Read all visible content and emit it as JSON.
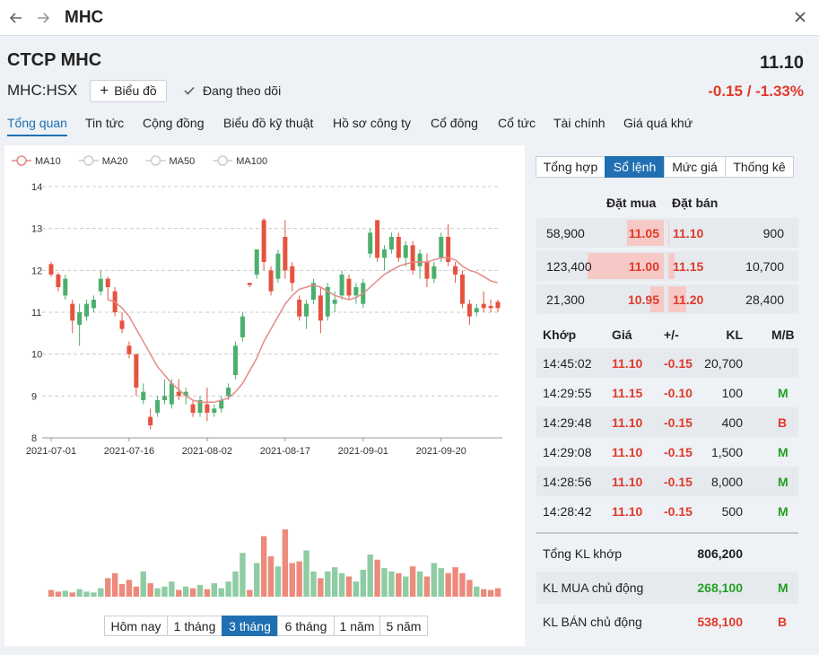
{
  "header": {
    "title": "MHC"
  },
  "company": {
    "name": "CTCP MHC",
    "ticker": "MHC:HSX",
    "chart_button": "Biểu đồ",
    "follow": "Đang theo dõi",
    "price": "11.10",
    "change": "-0.15 / -1.33%"
  },
  "tabs": [
    "Tổng quan",
    "Tin tức",
    "Cộng đồng",
    "Biểu đồ kỹ thuật",
    "Hồ sơ công ty",
    "Cổ đông",
    "Cổ tức",
    "Tài chính",
    "Giá quá khứ"
  ],
  "active_tab": 0,
  "chart_data": {
    "type": "candlestick",
    "categories": [
      "2021-07-01",
      null,
      null,
      null,
      null,
      null,
      null,
      null,
      null,
      null,
      null,
      "2021-07-16",
      null,
      null,
      null,
      null,
      null,
      null,
      null,
      null,
      null,
      null,
      "2021-08-02",
      null,
      null,
      null,
      null,
      null,
      null,
      null,
      null,
      null,
      null,
      "2021-08-17",
      null,
      null,
      null,
      null,
      null,
      null,
      null,
      null,
      null,
      null,
      "2021-09-01",
      null,
      null,
      null,
      null,
      null,
      null,
      null,
      null,
      null,
      null,
      "2021-09-20",
      null,
      null,
      null,
      null,
      null,
      null,
      null,
      null
    ],
    "open": [
      12.15,
      11.9,
      11.4,
      11.2,
      10.7,
      10.9,
      11.1,
      11.5,
      11.8,
      11.5,
      10.8,
      10.2,
      10.0,
      8.9,
      8.5,
      8.6,
      8.9,
      8.8,
      9.1,
      9.0,
      8.8,
      8.6,
      8.8,
      8.6,
      8.7,
      9.0,
      9.5,
      10.4,
      11.7,
      11.9,
      13.2,
      12.0,
      11.8,
      12.8,
      12.1,
      11.3,
      10.9,
      11.3,
      11.4,
      10.9,
      11.2,
      11.4,
      11.8,
      11.4,
      11.2,
      12.4,
      13.2,
      12.3,
      12.5,
      12.8,
      12.3,
      12.6,
      12.1,
      12.2,
      11.8,
      12.3,
      12.8,
      12.1,
      11.9,
      11.2,
      11.0,
      11.2,
      11.15,
      11.25
    ],
    "high": [
      12.2,
      11.95,
      11.9,
      11.3,
      11.2,
      11.3,
      11.4,
      12.0,
      11.85,
      11.6,
      11.0,
      10.3,
      10.0,
      9.3,
      8.7,
      9.0,
      9.4,
      9.4,
      9.4,
      9.2,
      8.9,
      9.0,
      9.2,
      8.8,
      9.0,
      9.3,
      10.3,
      11.0,
      11.7,
      12.5,
      13.25,
      12.1,
      12.5,
      13.2,
      12.2,
      11.4,
      11.3,
      11.8,
      11.6,
      11.7,
      11.5,
      12.0,
      11.9,
      11.7,
      11.8,
      13.0,
      13.2,
      12.6,
      12.9,
      12.9,
      12.7,
      12.7,
      12.5,
      12.4,
      12.2,
      12.9,
      13.1,
      12.2,
      12.0,
      11.3,
      11.2,
      11.5,
      11.3,
      11.3
    ],
    "low": [
      11.85,
      11.5,
      11.3,
      10.5,
      10.2,
      10.8,
      11.0,
      11.4,
      11.3,
      10.9,
      10.5,
      9.9,
      9.0,
      8.8,
      8.2,
      8.5,
      8.8,
      8.7,
      8.9,
      8.8,
      8.5,
      8.5,
      8.4,
      8.5,
      8.6,
      8.9,
      9.4,
      10.3,
      11.6,
      11.8,
      12.0,
      11.4,
      11.7,
      11.8,
      11.5,
      10.8,
      10.6,
      11.2,
      10.5,
      10.8,
      11.0,
      11.3,
      11.3,
      11.2,
      11.1,
      12.3,
      12.2,
      12.0,
      12.4,
      12.2,
      12.1,
      11.9,
      11.8,
      11.6,
      11.7,
      12.2,
      12.1,
      11.7,
      11.1,
      10.7,
      10.9,
      11.0,
      11.0,
      11.0
    ],
    "close": [
      11.9,
      11.6,
      11.8,
      10.8,
      11.0,
      11.2,
      11.3,
      11.8,
      11.6,
      11.0,
      10.6,
      10.0,
      9.2,
      9.1,
      8.3,
      8.9,
      9.0,
      9.3,
      9.0,
      9.1,
      8.6,
      8.9,
      8.6,
      8.7,
      8.9,
      9.2,
      10.2,
      10.9,
      11.65,
      12.5,
      12.2,
      11.5,
      12.4,
      12.0,
      11.7,
      10.9,
      11.2,
      11.7,
      10.8,
      11.6,
      11.3,
      11.9,
      11.4,
      11.6,
      11.7,
      12.9,
      12.3,
      12.5,
      12.8,
      12.3,
      12.6,
      12.0,
      12.4,
      11.8,
      12.1,
      12.8,
      12.2,
      11.9,
      11.2,
      10.9,
      11.1,
      11.1,
      11.1,
      11.1
    ],
    "volume": [
      8,
      6,
      7,
      5,
      9,
      6,
      5,
      10,
      22,
      28,
      15,
      20,
      12,
      30,
      16,
      10,
      12,
      18,
      8,
      12,
      10,
      14,
      9,
      16,
      10,
      18,
      30,
      52,
      8,
      40,
      72,
      48,
      36,
      80,
      40,
      42,
      55,
      30,
      22,
      30,
      35,
      28,
      24,
      18,
      32,
      50,
      44,
      34,
      30,
      28,
      24,
      36,
      30,
      24,
      40,
      34,
      28,
      35,
      28,
      20,
      12,
      9,
      8,
      10
    ],
    "moving_averages": [
      {
        "name": "MA10",
        "color": "#e58a8a",
        "visible": true,
        "values": [
          null,
          null,
          null,
          null,
          null,
          null,
          null,
          null,
          11.3,
          11.25,
          11.1,
          10.9,
          10.6,
          10.3,
          10.0,
          9.7,
          9.5,
          9.3,
          9.15,
          9.0,
          8.9,
          8.85,
          8.85,
          8.85,
          8.9,
          8.95,
          9.1,
          9.3,
          9.6,
          9.9,
          10.3,
          10.6,
          10.9,
          11.2,
          11.4,
          11.55,
          11.6,
          11.65,
          11.6,
          11.5,
          11.4,
          11.35,
          11.3,
          11.35,
          11.45,
          11.6,
          11.75,
          11.9,
          12.0,
          12.1,
          12.15,
          12.2,
          12.2,
          12.2,
          12.25,
          12.3,
          12.3,
          12.25,
          12.1,
          12.0,
          11.95,
          11.85,
          11.75,
          11.7
        ]
      },
      {
        "name": "MA20",
        "color": "#cccccc",
        "visible": false
      },
      {
        "name": "MA50",
        "color": "#cccccc",
        "visible": false
      },
      {
        "name": "MA100",
        "color": "#cccccc",
        "visible": false
      }
    ],
    "ylim": [
      8,
      14
    ],
    "yticks": [
      8,
      9,
      10,
      11,
      12,
      13,
      14
    ],
    "grid": true,
    "up_color": "#4caf6e",
    "down_color": "#e5533f",
    "up_volume_color": "#8fcca3",
    "down_volume_color": "#ec8a7c"
  },
  "ranges": {
    "options": [
      "Hôm nay",
      "1 tháng",
      "3 tháng",
      "6 tháng",
      "1 năm",
      "5 năm"
    ],
    "active": 2
  },
  "panel": {
    "tabs": [
      "Tổng hợp",
      "Sổ lệnh",
      "Mức giá",
      "Thống kê"
    ],
    "active_tab": 1,
    "order_book": {
      "headers": [
        "Đặt mua",
        "Đặt bán"
      ],
      "rows": [
        {
          "bid_volume": 58900,
          "bid_volume_label": "58,900",
          "bid_price": "11.05",
          "ask_price": "11.10",
          "ask_volume": 900,
          "ask_volume_label": "900"
        },
        {
          "bid_volume": 123400,
          "bid_volume_label": "123,400",
          "bid_price": "11.00",
          "ask_price": "11.15",
          "ask_volume": 10700,
          "ask_volume_label": "10,700"
        },
        {
          "bid_volume": 21300,
          "bid_volume_label": "21,300",
          "bid_price": "10.95",
          "ask_price": "11.20",
          "ask_volume": 28400,
          "ask_volume_label": "28,400"
        }
      ]
    },
    "trades": {
      "headers": [
        "Khớp",
        "Giá",
        "+/-",
        "KL",
        "M/B"
      ],
      "rows": [
        {
          "time": "14:45:02",
          "price": "11.10",
          "change": "-0.15",
          "volume": "20,700"
        },
        {
          "time": "14:29:55",
          "price": "11.15",
          "change": "-0.10",
          "volume": "100",
          "side": "M"
        },
        {
          "time": "14:29:48",
          "price": "11.10",
          "change": "-0.15",
          "volume": "400",
          "side": "B"
        },
        {
          "time": "14:29:08",
          "price": "11.10",
          "change": "-0.15",
          "volume": "1,500",
          "side": "M"
        },
        {
          "time": "14:28:56",
          "price": "11.10",
          "change": "-0.15",
          "volume": "8,000",
          "side": "M"
        },
        {
          "time": "14:28:42",
          "price": "11.10",
          "change": "-0.15",
          "volume": "500",
          "side": "M"
        }
      ]
    },
    "summary": [
      {
        "label": "Tổng KL khớp",
        "value": "806,200"
      },
      {
        "label": "KL MUA chủ động",
        "value": "268,100",
        "side": "M"
      },
      {
        "label": "KL BÁN chủ động",
        "value": "538,100",
        "side": "B"
      }
    ]
  }
}
